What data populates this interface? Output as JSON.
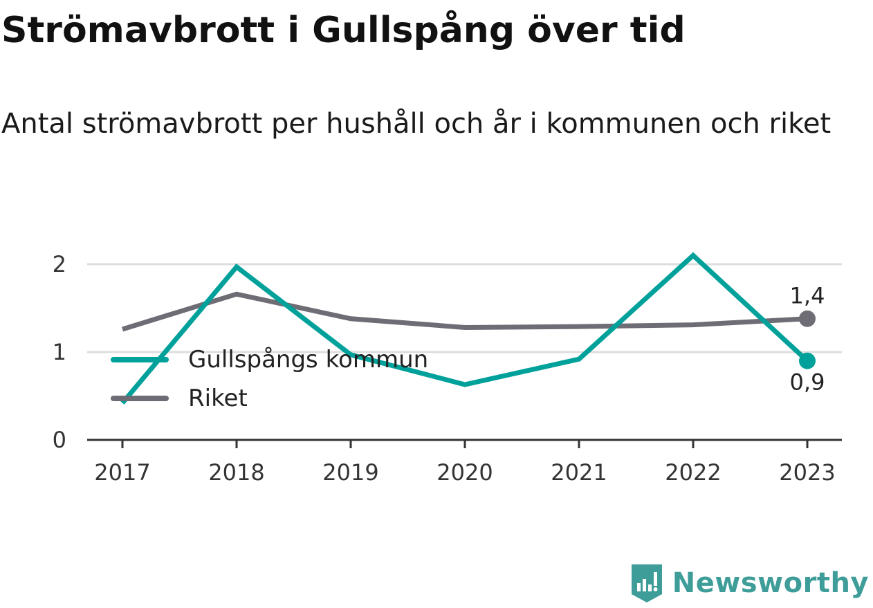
{
  "title": "Strömavbrott i Gullspång över tid",
  "subtitle": "Antal strömavbrott per hushåll och år i kommunen och riket",
  "brand": {
    "name": "Newsworthy",
    "icon": "newsworthy-logo-icon",
    "color": "#3e9d99"
  },
  "chart_data": {
    "type": "line",
    "title": "Strömavbrott i Gullspång över tid",
    "subtitle": "Antal strömavbrott per hushåll och år i kommunen och riket",
    "x": [
      "2017",
      "2018",
      "2019",
      "2020",
      "2021",
      "2022",
      "2023"
    ],
    "ylim": [
      0,
      2.3
    ],
    "yticks": [
      0,
      1,
      2
    ],
    "ytick_labels": [
      "0",
      "1",
      "2"
    ],
    "grid": true,
    "legend_position": "left",
    "series": [
      {
        "name": "Gullspångs kommun",
        "color": "#00a19a",
        "values": [
          0.42,
          1.97,
          0.97,
          0.63,
          0.92,
          2.1,
          0.9
        ],
        "end_label": "0,9"
      },
      {
        "name": "Riket",
        "color": "#6e6d75",
        "values": [
          1.26,
          1.66,
          1.38,
          1.28,
          1.29,
          1.31,
          1.38
        ],
        "end_label": "1,4"
      }
    ]
  }
}
